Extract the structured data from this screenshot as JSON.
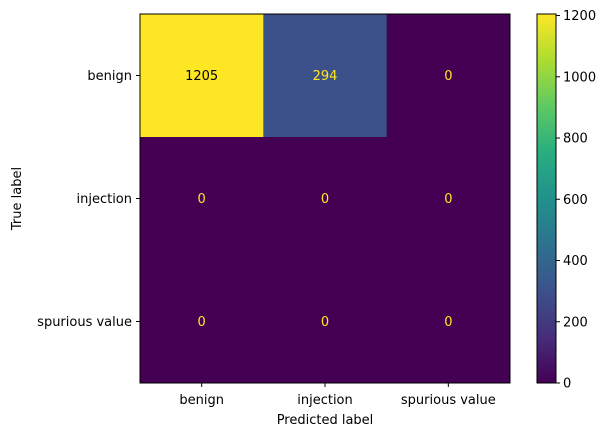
{
  "chart_data": {
    "type": "heatmap",
    "title": "",
    "xlabel": "Predicted label",
    "ylabel": "True label",
    "x_categories": [
      "benign",
      "injection",
      "spurious value"
    ],
    "y_categories": [
      "benign",
      "injection",
      "spurious value"
    ],
    "values": [
      [
        1205,
        294,
        0
      ],
      [
        0,
        0,
        0
      ],
      [
        0,
        0,
        0
      ]
    ],
    "colormap": "viridis",
    "colorbar": {
      "range": [
        0,
        1205
      ],
      "ticks": [
        0,
        200,
        400,
        600,
        800,
        1000,
        1200
      ]
    },
    "colors": {
      "low": "#440154",
      "high": "#fde725",
      "text_on_dark": "#fde725",
      "text_on_light": "#000000"
    }
  }
}
